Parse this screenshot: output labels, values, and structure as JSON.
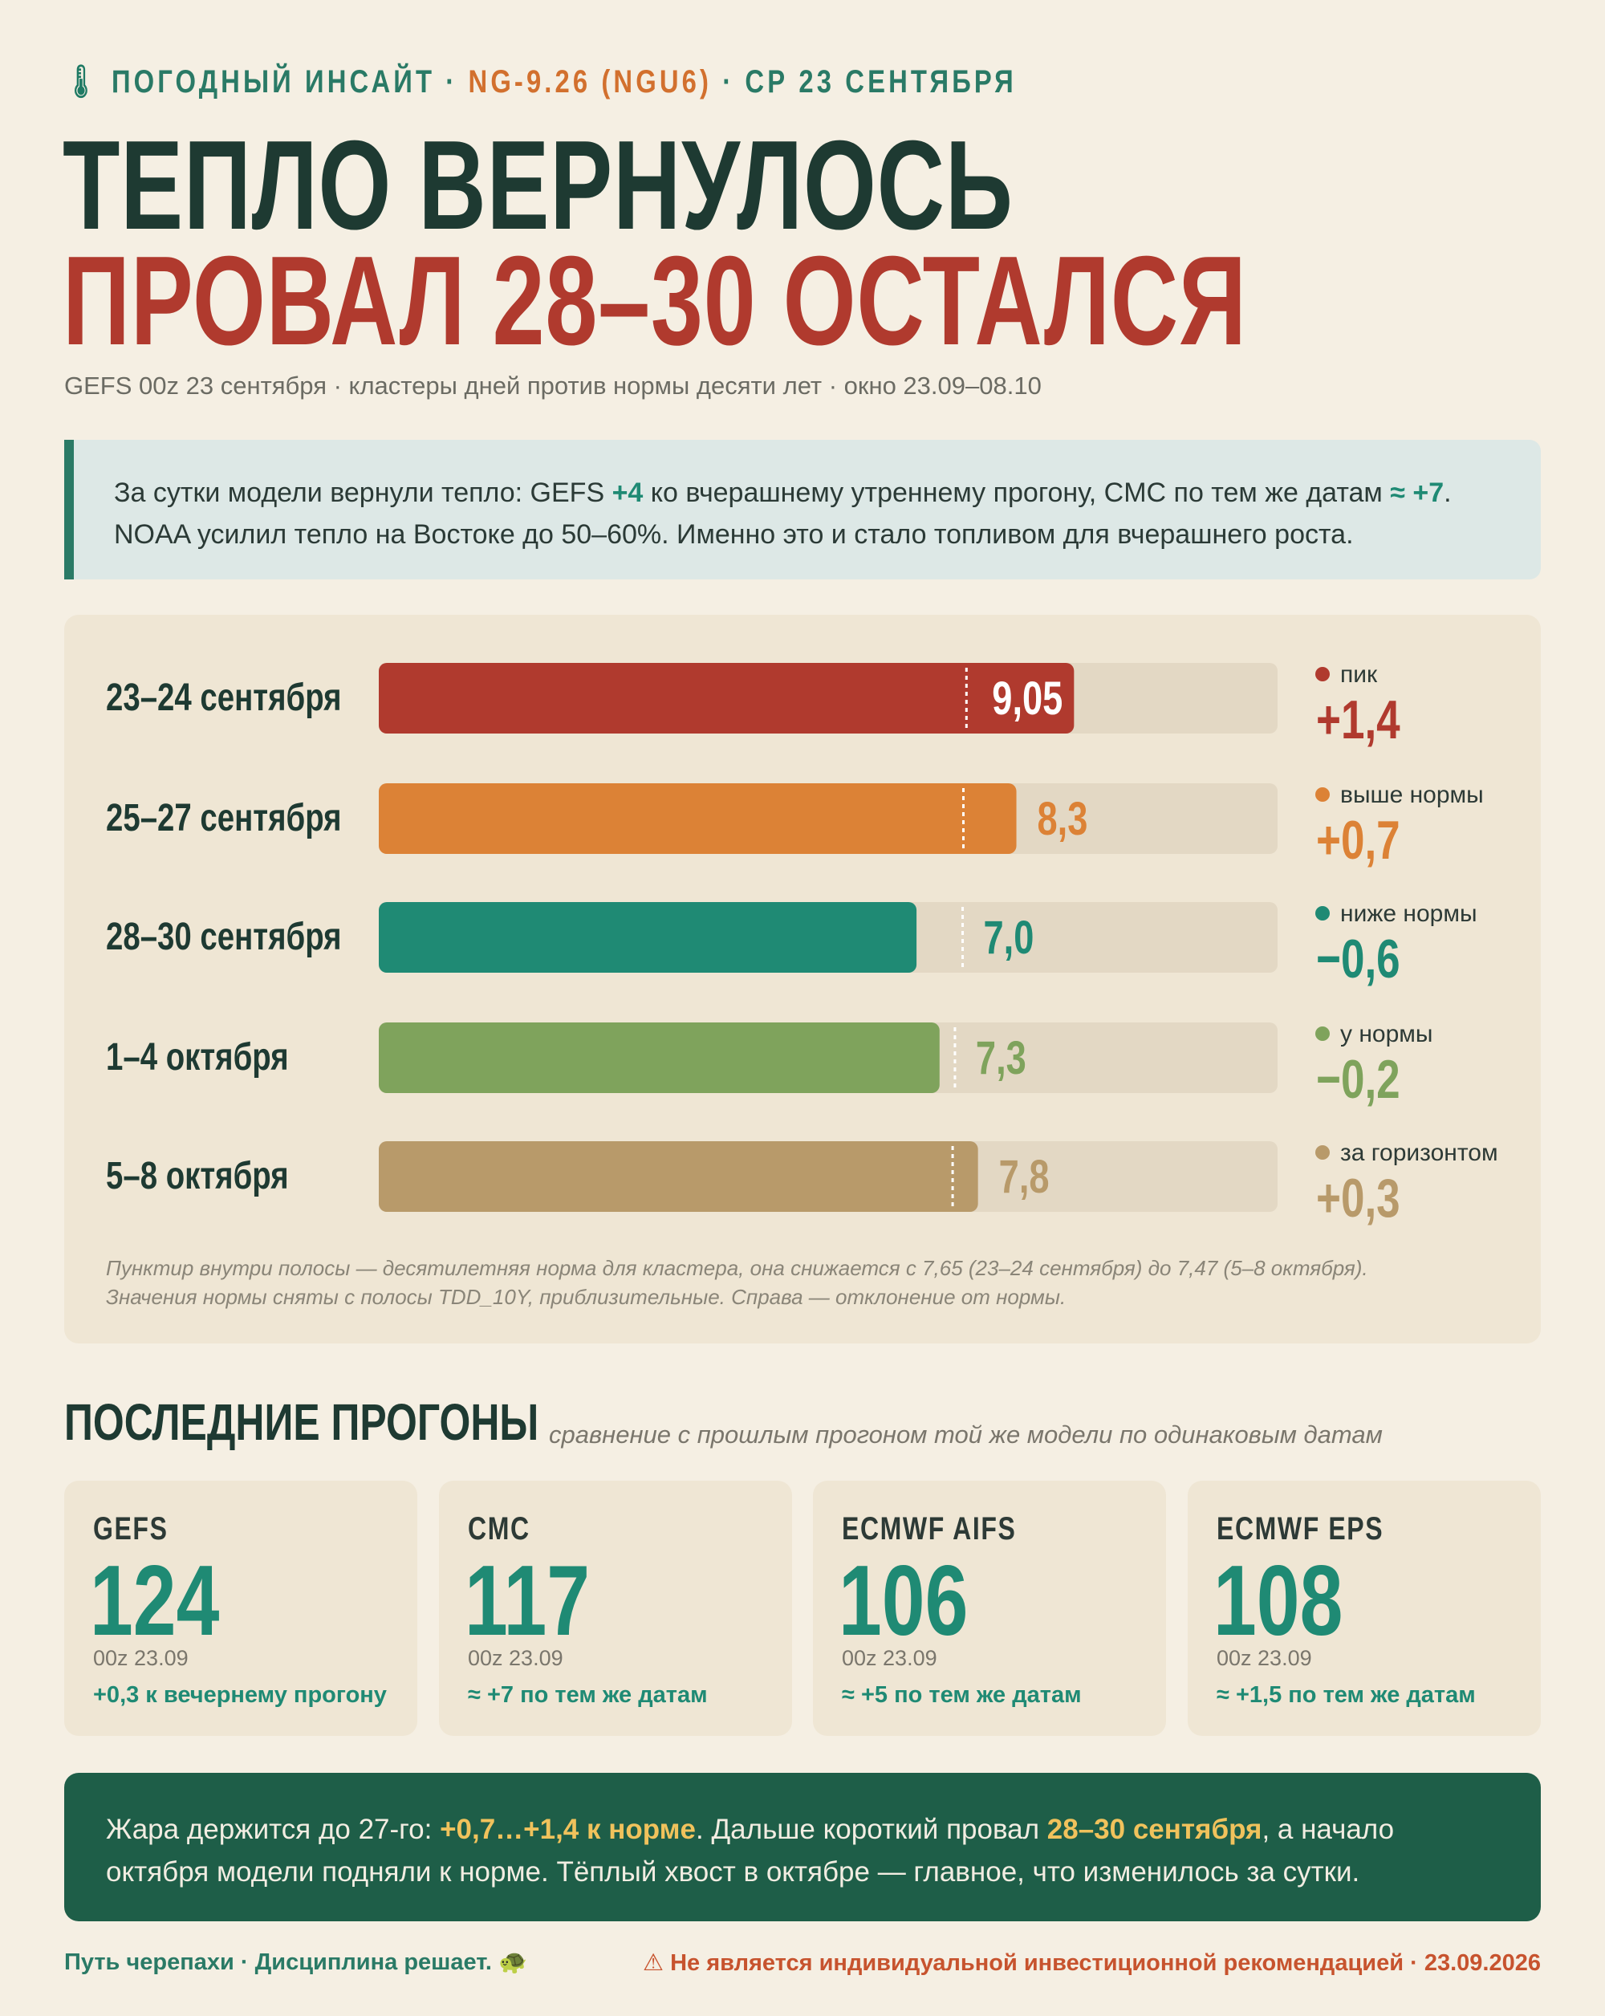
{
  "header": {
    "kicker_icon": "🌡",
    "kicker_part1": "ПОГОДНЫЙ ИНСАЙТ · ",
    "kicker_part2": "NG-9.26 (NGU6)",
    "kicker_part3": " · СР 23 СЕНТЯБРЯ",
    "headline_1": "ТЕПЛО ВЕРНУЛОСЬ",
    "headline_2": "ПРОВАЛ 28–30 ОСТАЛСЯ",
    "subtitle": "GEFS 00z 23 сентября · кластеры дней против нормы десяти лет · окно 23.09–08.10"
  },
  "insight": {
    "t1": "За сутки модели вернули тепло: GEFS ",
    "b1": "+4",
    "t2": " ко вчерашнему утреннему прогону, CMC по тем же датам ",
    "b2": "≈ +7",
    "t3": ".",
    "t4": "NOAA усилил тепло на Востоке до 50–60%. Именно это и стало топливом для вчерашнего роста."
  },
  "chart_data": {
    "type": "bar",
    "orientation": "horizontal",
    "categories": [
      "23–24 сентября",
      "25–27 сентября",
      "28–30 сентября",
      "1–4 октября",
      "5–8 октября"
    ],
    "values": [
      9.05,
      8.3,
      7.0,
      7.3,
      7.8
    ],
    "value_labels": [
      "9,05",
      "8,3",
      "7,0",
      "7,3",
      "7,8"
    ],
    "norms": [
      7.65,
      7.61,
      7.6,
      7.5,
      7.47
    ],
    "status_labels": [
      "пик",
      "выше нормы",
      "ниже нормы",
      "у нормы",
      "за горизонтом"
    ],
    "deviations": [
      "+1,4",
      "+0,7",
      "−0,6",
      "−0,2",
      "+0,3"
    ],
    "colors": [
      "#b03a2e",
      "#dc8236",
      "#1f8a74",
      "#7fa35c",
      "#b89a6a"
    ],
    "xlim": [
      0,
      11.7
    ],
    "footnote_1": "Пунктир внутри полосы — десятилетняя норма для кластера, она снижается с 7,65 (23–24 сентября) до 7,47 (5–8 октября).",
    "footnote_2": "Значения нормы сняты с полосы TDD_10Y, приблизительные. Справа — отклонение от нормы."
  },
  "runs": {
    "title": "ПОСЛЕДНИЕ ПРОГОНЫ",
    "subtitle": "сравнение с прошлым прогоном той же модели по одинаковым датам",
    "cards": [
      {
        "name": "GEFS",
        "value": "124",
        "run": "00z 23.09",
        "delta": "+0,3 к вечернему прогону"
      },
      {
        "name": "CMC",
        "value": "117",
        "run": "00z 23.09",
        "delta": "≈ +7 по тем же датам"
      },
      {
        "name": "ECMWF AIFS",
        "value": "106",
        "run": "00z 23.09",
        "delta": "≈ +5 по тем же датам"
      },
      {
        "name": "ECMWF EPS",
        "value": "108",
        "run": "00z 23.09",
        "delta": "≈ +1,5 по тем же датам"
      }
    ]
  },
  "summary": {
    "t1": "Жара держится до 27-го: ",
    "b1": "+0,7…+1,4 к норме",
    "t2": ". Дальше короткий провал ",
    "b2": "28–30 сентября",
    "t3": ", а начало",
    "t4": "октября модели подняли к норме. Тёплый хвост в октябре — главное, что изменилось за сутки."
  },
  "footer": {
    "left": "Путь черепахи · Дисциплина решает. 🐢",
    "right": "⚠ Не является индивидуальной инвестиционной рекомендацией · 23.09.2026"
  }
}
